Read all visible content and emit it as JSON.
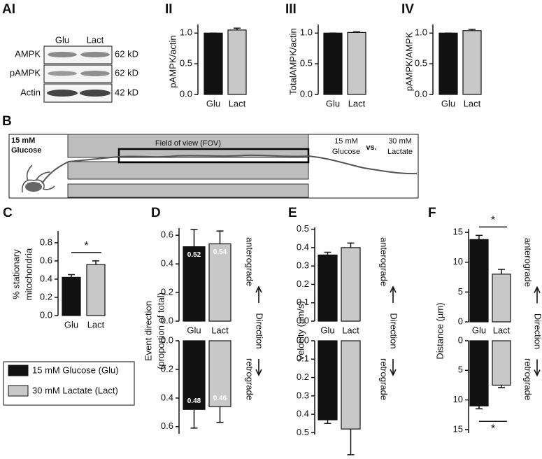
{
  "blot": {
    "label": "AI",
    "lanes": [
      "Glu",
      "Lact"
    ],
    "rows": [
      {
        "protein": "AMPK",
        "size": "62 kD"
      },
      {
        "protein": "pAMPK",
        "size": "62 kD"
      },
      {
        "protein": "Actin",
        "size": "42 kD"
      }
    ]
  },
  "schematic": {
    "label": "B",
    "condition": [
      "15 mM",
      "Glucose"
    ],
    "fov": "Field of view (FOV)",
    "compare": {
      "left": [
        "15 mM",
        "Glucose"
      ],
      "vs": "vs.",
      "right": [
        "30 mM",
        "Lactate"
      ]
    }
  },
  "legend": {
    "entries": [
      {
        "label": "15 mM Glucose (Glu)",
        "color": "#111111"
      },
      {
        "label": "30 mM Lactate (Lact)",
        "color": "#c8c8c8"
      }
    ]
  },
  "chart_data": [
    {
      "type": "bar",
      "panel": "II",
      "ylabel": [
        "pAMPK/actin"
      ],
      "categories": [
        "Glu",
        "Lact"
      ],
      "colors": [
        "#111111",
        "#c8c8c8"
      ],
      "values": [
        1.0,
        1.05
      ],
      "errors": [
        0,
        0.03
      ],
      "ylim": [
        0,
        1.14
      ],
      "yticks": [
        {
          "value": 0,
          "label": "0.0"
        },
        {
          "value": 0.5,
          "label": "0.5"
        },
        {
          "value": 1,
          "label": "1.0"
        }
      ]
    },
    {
      "type": "bar",
      "panel": "III",
      "ylabel": [
        "TotalAMPK/actin"
      ],
      "categories": [
        "Glu",
        "Lact"
      ],
      "colors": [
        "#111111",
        "#c8c8c8"
      ],
      "values": [
        1.0,
        1.01
      ],
      "errors": [
        0,
        0.01
      ],
      "ylim": [
        0,
        1.14
      ],
      "yticks": [
        {
          "value": 0,
          "label": "0.0"
        },
        {
          "value": 0.5,
          "label": "0.5"
        },
        {
          "value": 1,
          "label": "1.0"
        }
      ]
    },
    {
      "type": "bar",
      "panel": "IV",
      "ylabel": [
        "pAMPK/AMPK"
      ],
      "categories": [
        "Glu",
        "Lact"
      ],
      "colors": [
        "#111111",
        "#c8c8c8"
      ],
      "values": [
        1.0,
        1.04
      ],
      "errors": [
        0,
        0.02
      ],
      "ylim": [
        0,
        1.14
      ],
      "yticks": [
        {
          "value": 0,
          "label": "0.0"
        },
        {
          "value": 0.5,
          "label": "0.5"
        },
        {
          "value": 1,
          "label": "1.0"
        }
      ]
    },
    {
      "type": "bar",
      "panel": "C",
      "ylabel": [
        "% stationary",
        "mitochondria"
      ],
      "categories": [
        "Glu",
        "Lact"
      ],
      "colors": [
        "#111111",
        "#c8c8c8"
      ],
      "values": [
        0.42,
        0.56
      ],
      "errors": [
        0.03,
        0.04
      ],
      "ylim": [
        0,
        0.93
      ],
      "annotation": "*",
      "yticks": [
        {
          "value": 0,
          "label": "0.0"
        },
        0.2,
        0.4,
        0.6,
        0.8
      ]
    },
    {
      "type": "mirrored-bar",
      "panel": "D",
      "ylabel": [
        "Event direction",
        "(proportion of total)"
      ],
      "categories": [
        "Glu",
        "Lact"
      ],
      "colors": [
        "#111111",
        "#c8c8c8"
      ],
      "direction": "Direction",
      "data_labels": true,
      "upper": {
        "name": "anterograde",
        "values": [
          0.52,
          0.54
        ],
        "errors": [
          0.12,
          0.09
        ],
        "ylim": [
          0,
          0.65
        ],
        "yticks": [
          {
            "value": 0,
            "label": "0.0"
          },
          0.2,
          0.4,
          0.6
        ]
      },
      "lower": {
        "name": "retrograde",
        "values": [
          0.48,
          0.46
        ],
        "errors": [
          0.13,
          0.11
        ],
        "ylim": [
          0,
          0.65
        ],
        "yticks": [
          {
            "value": 0,
            "label": "0.0"
          },
          0.2,
          0.4,
          0.6
        ]
      }
    },
    {
      "type": "mirrored-bar",
      "panel": "E",
      "ylabel": [
        "Velocity (µm/s)"
      ],
      "categories": [
        "Glu",
        "Lact"
      ],
      "colors": [
        "#111111",
        "#c8c8c8"
      ],
      "direction": "Direction",
      "data_labels": false,
      "upper": {
        "name": "anterograde",
        "values": [
          0.36,
          0.4
        ],
        "errors": [
          0.015,
          0.025
        ],
        "ylim": [
          0,
          0.51
        ],
        "yticks": [
          {
            "value": 0,
            "label": "0.0"
          },
          0.1,
          0.2,
          0.3,
          0.4,
          0.5
        ]
      },
      "lower": {
        "name": "retrograde",
        "values": [
          0.43,
          0.48
        ],
        "errors": [
          0.02,
          0.14
        ],
        "ylim": [
          0,
          0.51
        ],
        "yticks": [
          {
            "value": 0,
            "label": "0.0"
          },
          0.1,
          0.2,
          0.3,
          0.4,
          0.5
        ]
      }
    },
    {
      "type": "mirrored-bar",
      "panel": "F",
      "ylabel": [
        "Distance (µm)"
      ],
      "categories": [
        "Glu",
        "Lact"
      ],
      "colors": [
        "#111111",
        "#c8c8c8"
      ],
      "direction": "Direction",
      "data_labels": false,
      "upper": {
        "name": "anterograde",
        "values": [
          13.8,
          8.0
        ],
        "errors": [
          0.7,
          0.8
        ],
        "ylim": [
          0,
          15.6
        ],
        "yticks": [
          0,
          5,
          10,
          15
        ],
        "annotation": "*"
      },
      "lower": {
        "name": "retrograde",
        "values": [
          11.0,
          7.5
        ],
        "errors": [
          0.5,
          0.4
        ],
        "ylim": [
          0,
          15.6
        ],
        "yticks": [
          0,
          5,
          10,
          15
        ],
        "annotation": "*"
      }
    }
  ]
}
